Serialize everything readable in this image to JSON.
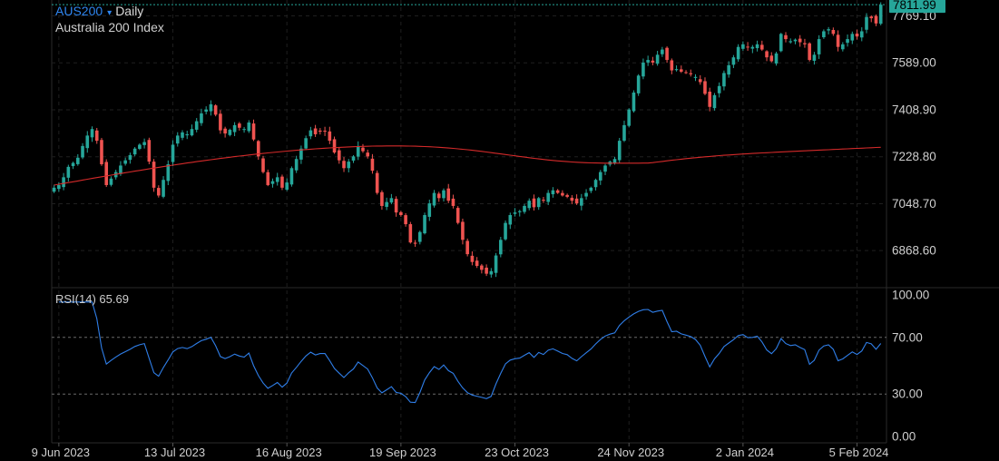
{
  "header": {
    "symbol": "AUS200",
    "symbol_caret": "▾",
    "timeframe": "Daily",
    "name": "Australia 200 Index"
  },
  "rsi_panel": {
    "label": "RSI(14)",
    "value": "65.69"
  },
  "colors": {
    "background": "#000000",
    "up": "#26a69a",
    "down": "#ef5350",
    "ma": "#d42a2a",
    "rsi": "#2f7ee8",
    "price_tag": "#26a69a",
    "grid": "#1f1f1f"
  },
  "chart_data": [
    {
      "type": "candlestick",
      "title": "Australia 200 Index",
      "ylim": [
        6730,
        7830
      ],
      "last_price": 7811.99,
      "last_price_label": "7811.99",
      "y_ticks": [
        6868.6,
        7048.7,
        7228.8,
        7408.9,
        7589.0,
        7769.1
      ],
      "y_tick_labels": [
        "6868.60",
        "7048.70",
        "7228.80",
        "7408.90",
        "7589.00",
        "7769.10"
      ],
      "x_tick_labels": [
        "9 Jun 2023",
        "13 Jul 2023",
        "16 Aug 2023",
        "19 Sep 2023",
        "23 Oct 2023",
        "24 Nov 2023",
        "2 Jan 2024",
        "5 Feb 2024"
      ],
      "x_tick_index": [
        1,
        25,
        49,
        73,
        97,
        121,
        145,
        169
      ],
      "grid": true,
      "close": [
        7110,
        7120,
        7150,
        7190,
        7205,
        7225,
        7270,
        7310,
        7335,
        7290,
        7200,
        7120,
        7145,
        7170,
        7195,
        7215,
        7235,
        7260,
        7275,
        7285,
        7210,
        7110,
        7080,
        7140,
        7200,
        7275,
        7310,
        7322,
        7315,
        7335,
        7365,
        7395,
        7410,
        7430,
        7390,
        7330,
        7318,
        7332,
        7350,
        7340,
        7335,
        7360,
        7295,
        7230,
        7170,
        7120,
        7135,
        7150,
        7110,
        7130,
        7185,
        7220,
        7260,
        7300,
        7330,
        7315,
        7325,
        7325,
        7290,
        7245,
        7215,
        7185,
        7210,
        7230,
        7270,
        7250,
        7230,
        7175,
        7090,
        7040,
        7055,
        7070,
        7015,
        7005,
        6970,
        6900,
        6895,
        6940,
        7005,
        7050,
        7090,
        7070,
        7100,
        7060,
        7040,
        6975,
        6910,
        6855,
        6825,
        6810,
        6795,
        6780,
        6790,
        6850,
        6910,
        6975,
        7005,
        7015,
        7020,
        7040,
        7060,
        7035,
        7070,
        7060,
        7090,
        7100,
        7090,
        7080,
        7075,
        7060,
        7050,
        7070,
        7090,
        7110,
        7140,
        7170,
        7195,
        7210,
        7220,
        7290,
        7350,
        7410,
        7475,
        7540,
        7590,
        7600,
        7590,
        7620,
        7640,
        7600,
        7560,
        7565,
        7555,
        7550,
        7545,
        7535,
        7515,
        7470,
        7420,
        7465,
        7500,
        7550,
        7580,
        7610,
        7650,
        7660,
        7648,
        7650,
        7660,
        7640,
        7610,
        7595,
        7625,
        7700,
        7680,
        7672,
        7678,
        7668,
        7660,
        7600,
        7620,
        7680,
        7710,
        7718,
        7700,
        7650,
        7660,
        7680,
        7700,
        7690,
        7710,
        7765,
        7760,
        7740,
        7811.99
      ],
      "ma_start": 7120,
      "ma_end": 7265
    },
    {
      "type": "line",
      "title": "RSI(14)",
      "ylim": [
        0,
        100
      ],
      "y_ticks": [
        0,
        30,
        70,
        100
      ],
      "y_tick_labels": [
        "0.00",
        "30.00",
        "70.00",
        "100.00"
      ],
      "reference_lines": [
        30,
        70
      ],
      "last_value": 65.69
    }
  ]
}
